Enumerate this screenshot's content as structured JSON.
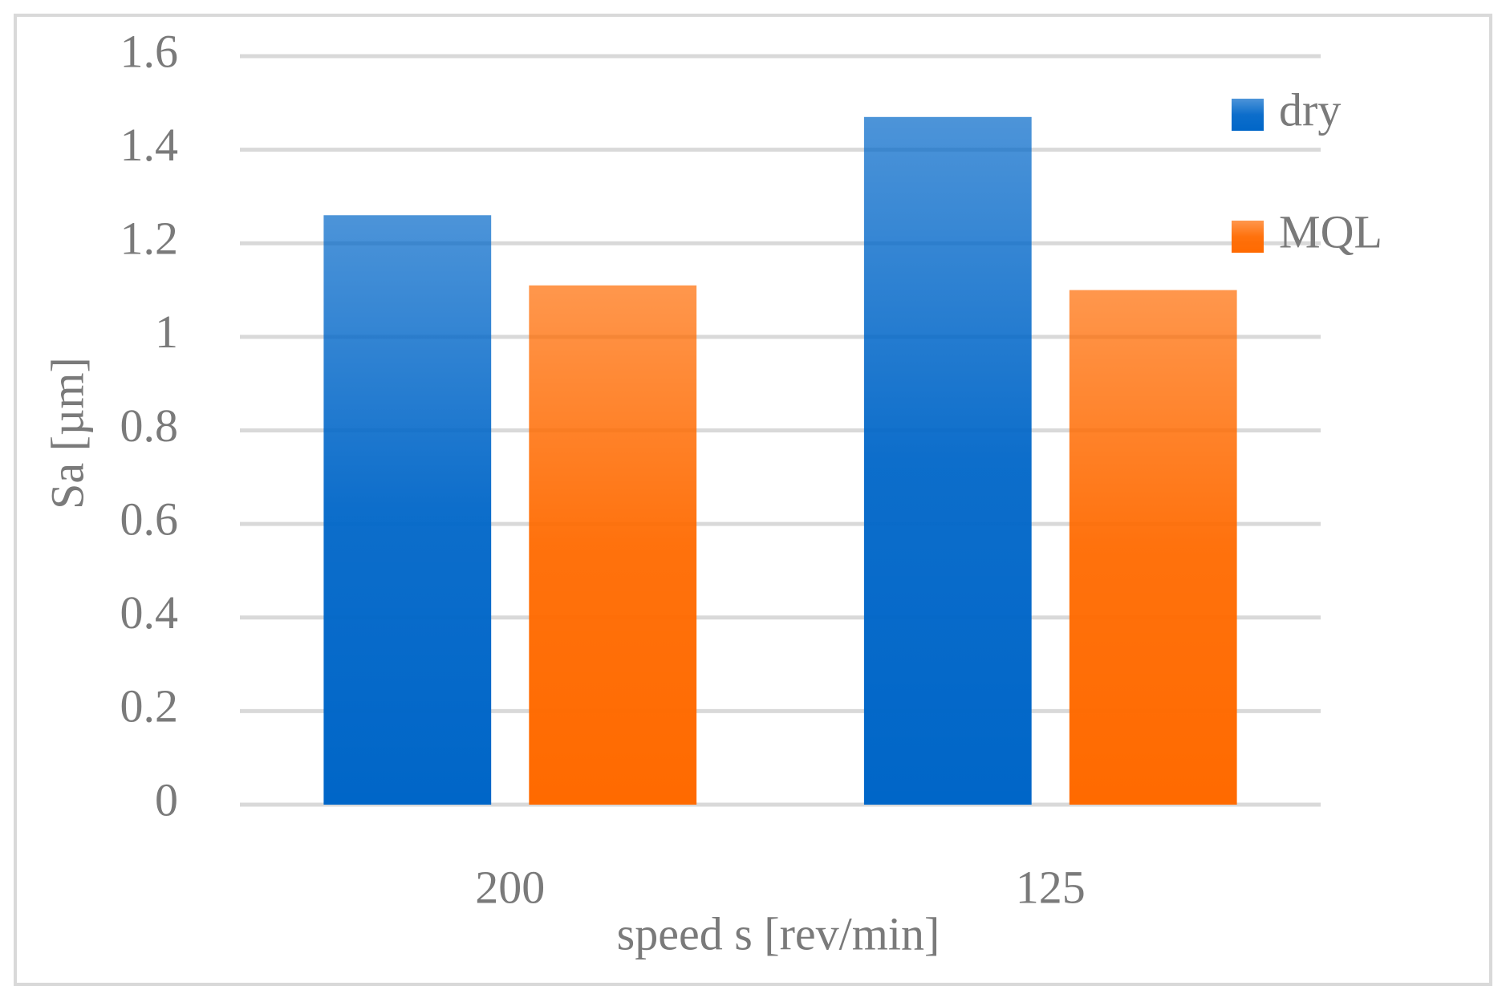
{
  "chart_data": {
    "type": "bar",
    "categories": [
      "200",
      "125"
    ],
    "series": [
      {
        "name": "dry",
        "color": "#0066c8",
        "values": [
          1.26,
          1.47
        ]
      },
      {
        "name": "MQL",
        "color": "#ff6a00",
        "values": [
          1.11,
          1.1
        ]
      }
    ],
    "x_label": "speed s [rev/min]",
    "y_label": "Sa [µm]",
    "ylim": [
      0,
      1.6
    ],
    "yticks": [
      0,
      0.2,
      0.4,
      0.6,
      0.8,
      1,
      1.2,
      1.4,
      1.6
    ],
    "grid": true,
    "legend": "upper right"
  }
}
